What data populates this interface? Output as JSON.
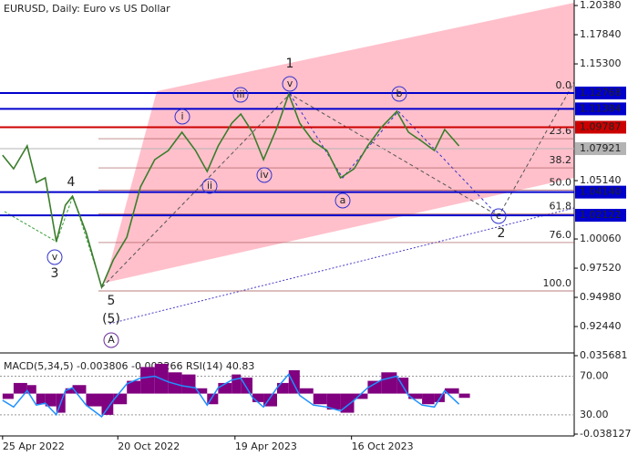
{
  "header": {
    "title": "EURUSD, Daily:  Euro vs US Dollar"
  },
  "chart_data": {
    "type": "line",
    "color": "#3a7d2c",
    "x": [
      "2022-04-25",
      "2022-05-12",
      "2022-06-02",
      "2022-06-16",
      "2022-06-30",
      "2022-07-17",
      "2022-07-31",
      "2022-08-11",
      "2022-09-01",
      "2022-09-25",
      "2022-10-13",
      "2022-11-03",
      "2022-11-24",
      "2022-12-16",
      "2023-01-06",
      "2023-01-27",
      "2023-02-17",
      "2023-03-07",
      "2023-03-24",
      "2023-04-14",
      "2023-04-28",
      "2023-05-16",
      "2023-06-02",
      "2023-06-23",
      "2023-07-11",
      "2023-07-28",
      "2023-08-18",
      "2023-09-08",
      "2023-09-29",
      "2023-10-20",
      "2023-11-10",
      "2023-12-01",
      "2023-12-25",
      "2024-01-12",
      "2024-02-02",
      "2024-02-21",
      "2024-03-08",
      "2024-03-30"
    ],
    "values": [
      1.0736,
      1.0617,
      1.0816,
      1.0498,
      1.0538,
      0.9982,
      1.03,
      1.0379,
      1.0062,
      0.9586,
      0.9824,
      1.0022,
      1.0459,
      1.0697,
      1.0776,
      1.0935,
      1.0776,
      1.0594,
      1.0816,
      1.1014,
      1.1094,
      1.0935,
      1.0697,
      1.0976,
      1.1268,
      1.1014,
      1.0855,
      1.0776,
      1.0538,
      1.0617,
      1.0816,
      1.0976,
      1.1117,
      1.0935,
      1.0855,
      1.0776,
      1.0959,
      1.0816
    ],
    "xlim": [
      "2022-04-21",
      "2024-09-24"
    ],
    "xticks": [
      {
        "value": "2022-04-25",
        "label": "25 Apr 2022"
      },
      {
        "value": "2022-10-20",
        "label": "20 Oct 2022"
      },
      {
        "value": "2023-04-19",
        "label": "19 Apr 2023"
      },
      {
        "value": "2023-10-16",
        "label": "16 Oct 2023"
      }
    ],
    "ylim": [
      0.903,
      1.2086
    ],
    "yticks": [
      {
        "value": 1.2038,
        "label": "1.20380"
      },
      {
        "value": 1.1784,
        "label": "1.17840"
      },
      {
        "value": 1.153,
        "label": "1.15300"
      },
      {
        "value": 1.0514,
        "label": "1.05140"
      },
      {
        "value": 1.0006,
        "label": "1.00060"
      },
      {
        "value": 0.9752,
        "label": "0.97520"
      },
      {
        "value": 0.9498,
        "label": "0.94980"
      },
      {
        "value": 0.9244,
        "label": "0.92440"
      }
    ],
    "price_levels": [
      {
        "value": 1.12768,
        "label": "1.12768",
        "color": "#0000cc"
      },
      {
        "value": 1.11384,
        "label": "1.11384",
        "color": "#0000cc"
      },
      {
        "value": 1.09787,
        "label": "1.09787",
        "color": "#cc0000"
      },
      {
        "value": 1.07921,
        "label": "1.07921",
        "color": "#b4b4b4"
      },
      {
        "value": 1.0414,
        "label": "1.04140",
        "color": "#0000cc"
      },
      {
        "value": 1.02122,
        "label": "1.02122",
        "color": "#0000cc"
      }
    ],
    "fib_levels": [
      {
        "label": "0.0",
        "value": 1.1275
      },
      {
        "label": "23.6",
        "value": 1.0879
      },
      {
        "label": "38.2",
        "value": 1.0625
      },
      {
        "label": "50.0",
        "value": 1.043
      },
      {
        "label": "61.8",
        "value": 1.0224
      },
      {
        "label": "76.0",
        "value": 0.9975
      },
      {
        "label": "100.0",
        "value": 0.9554
      }
    ],
    "annotations": [
      "1",
      "4",
      "3",
      "5",
      "(5)",
      "A",
      "v",
      "i",
      "ii",
      "iii",
      "iv",
      "v",
      "a",
      "b",
      "c",
      "2"
    ]
  },
  "indicator": {
    "title": "MACD(5,34,5) -0.003806 -0.002266 RSI(14) 40.83",
    "macd": {
      "color": "#800080",
      "ylim": [
        -0.038127,
        0.035681
      ],
      "yticks": [
        0.035681,
        -0.038127
      ],
      "values": [
        -0.005,
        0.01,
        0.008,
        -0.01,
        -0.012,
        -0.018,
        0.005,
        0.008,
        -0.012,
        -0.02,
        -0.01,
        0.012,
        0.025,
        0.028,
        0.02,
        0.018,
        0.005,
        -0.01,
        0.01,
        0.018,
        0.015,
        -0.008,
        -0.012,
        0.01,
        0.022,
        0.005,
        -0.01,
        -0.015,
        -0.018,
        -0.005,
        0.012,
        0.02,
        0.015,
        -0.005,
        -0.01,
        -0.008,
        0.005,
        -0.004
      ]
    },
    "rsi": {
      "color": "#1e90ff",
      "ylim": [
        10,
        91.2
      ],
      "yticks": [
        {
          "value": 70,
          "label": "70.00"
        },
        {
          "value": 30,
          "label": "30.00"
        }
      ],
      "values": [
        45,
        38,
        55,
        40,
        42,
        30,
        55,
        58,
        40,
        28,
        45,
        62,
        68,
        70,
        64,
        60,
        58,
        40,
        58,
        66,
        68,
        48,
        38,
        58,
        72,
        50,
        40,
        38,
        34,
        45,
        58,
        66,
        70,
        50,
        40,
        38,
        55,
        41
      ]
    }
  }
}
